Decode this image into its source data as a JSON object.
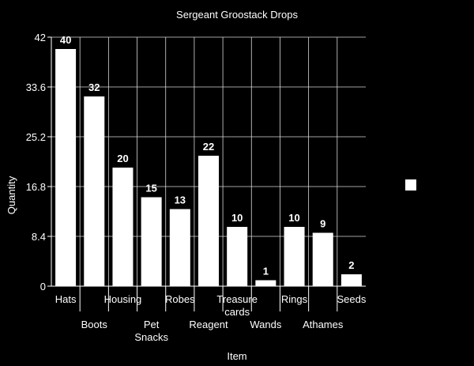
{
  "chart_data": {
    "type": "bar",
    "title": "Sergeant Groostack Drops",
    "xlabel": "Item",
    "ylabel": "Quantity",
    "categories": [
      "Hats",
      "Boots",
      "Housing",
      "Pet Snacks",
      "Robes",
      "Reagent",
      "Treasure cards",
      "Wands",
      "Rings",
      "Athames",
      "Seeds"
    ],
    "category_lines": [
      [
        "Hats"
      ],
      [
        "Boots"
      ],
      [
        "Housing"
      ],
      [
        "Pet",
        "Snacks"
      ],
      [
        "Robes"
      ],
      [
        "Reagent"
      ],
      [
        "Treasure",
        "cards"
      ],
      [
        "Wands"
      ],
      [
        "Rings"
      ],
      [
        "Athames"
      ],
      [
        "Seeds"
      ]
    ],
    "values": [
      40,
      32,
      20,
      15,
      13,
      22,
      10,
      1,
      10,
      9,
      2
    ],
    "ylim": [
      0,
      42
    ],
    "yticks": [
      "0",
      "8.4",
      "16.8",
      "25.2",
      "33.6",
      "42"
    ],
    "grid": true,
    "legend": "right",
    "bar_color": "#ffffff",
    "background": "#000000"
  }
}
